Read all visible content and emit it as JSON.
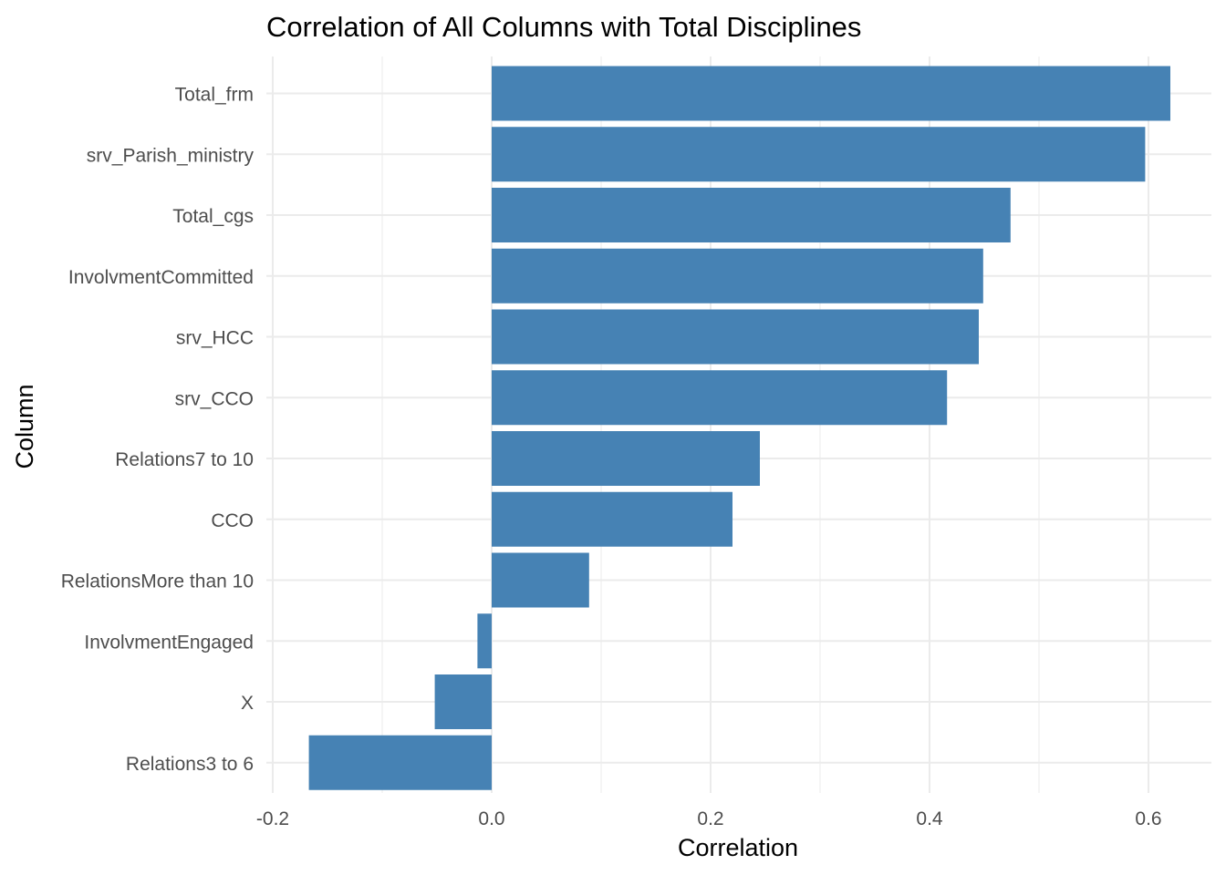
{
  "chart_data": {
    "type": "bar",
    "orientation": "horizontal",
    "title": "Correlation of All Columns with Total Disciplines",
    "xlabel": "Correlation",
    "ylabel": "Column",
    "categories": [
      "Total_frm",
      "srv_Parish_ministry",
      "Total_cgs",
      "InvolvmentCommitted",
      "srv_HCC",
      "srv_CCO",
      "Relations7 to 10",
      "CCO",
      "RelationsMore than 10",
      "InvolvmentEngaged",
      "X",
      "Relations3 to 6"
    ],
    "values": [
      0.62,
      0.597,
      0.474,
      0.449,
      0.445,
      0.416,
      0.245,
      0.22,
      0.089,
      -0.013,
      -0.052,
      -0.167
    ],
    "xlim": [
      -0.2,
      0.62
    ],
    "xticks": [
      -0.2,
      0.0,
      0.2,
      0.4,
      0.6
    ],
    "xtick_labels": [
      "-0.2",
      "0.0",
      "0.2",
      "0.4",
      "0.6"
    ],
    "grid": true,
    "bar_color": "#4682b4"
  }
}
